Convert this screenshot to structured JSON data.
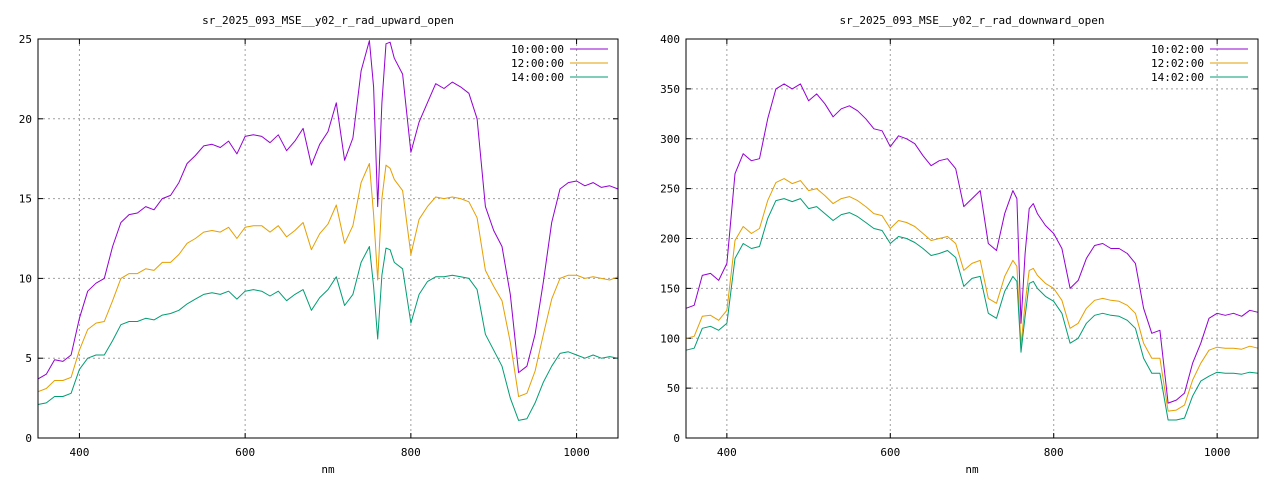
{
  "chart_data": [
    {
      "type": "line",
      "title": "sr_2025_093_MSE__y02_r_rad_upward_open",
      "xlabel": "nm",
      "ylabel": "",
      "xlim": [
        350,
        1050
      ],
      "ylim": [
        0,
        25
      ],
      "xticks": [
        400,
        600,
        800,
        1000
      ],
      "yticks": [
        0,
        5,
        10,
        15,
        20,
        25
      ],
      "grid": true,
      "legend": "top-right",
      "series": [
        {
          "name": "10:00:00",
          "color": "#9400d3",
          "x": [
            350,
            360,
            370,
            380,
            390,
            400,
            410,
            420,
            430,
            440,
            450,
            460,
            470,
            480,
            490,
            500,
            510,
            520,
            530,
            540,
            550,
            560,
            570,
            580,
            590,
            600,
            610,
            620,
            630,
            640,
            650,
            660,
            670,
            680,
            690,
            700,
            710,
            720,
            730,
            740,
            750,
            755,
            760,
            765,
            770,
            775,
            780,
            790,
            800,
            810,
            820,
            830,
            840,
            850,
            860,
            870,
            880,
            890,
            900,
            910,
            920,
            930,
            940,
            950,
            960,
            970,
            980,
            990,
            1000,
            1010,
            1020,
            1030,
            1040,
            1050
          ],
          "y": [
            3.7,
            4.0,
            4.9,
            4.8,
            5.2,
            7.5,
            9.2,
            9.7,
            10.0,
            12.0,
            13.5,
            14.0,
            14.1,
            14.5,
            14.3,
            15.0,
            15.2,
            16.0,
            17.2,
            17.7,
            18.3,
            18.4,
            18.2,
            18.6,
            17.8,
            18.9,
            19.0,
            18.9,
            18.5,
            19.0,
            18.0,
            18.6,
            19.4,
            17.1,
            18.4,
            19.2,
            21.0,
            17.4,
            18.8,
            23.0,
            24.9,
            22.0,
            14.5,
            21.0,
            24.7,
            24.8,
            23.8,
            22.8,
            17.9,
            19.8,
            21.0,
            22.2,
            21.9,
            22.3,
            22.0,
            21.6,
            20.0,
            14.5,
            13.0,
            12.0,
            9.0,
            4.1,
            4.5,
            6.5,
            9.8,
            13.5,
            15.6,
            16.0,
            16.1,
            15.8,
            16.0,
            15.7,
            15.8,
            15.6
          ]
        },
        {
          "name": "12:00:00",
          "color": "#e69f00",
          "x": [
            350,
            360,
            370,
            380,
            390,
            400,
            410,
            420,
            430,
            440,
            450,
            460,
            470,
            480,
            490,
            500,
            510,
            520,
            530,
            540,
            550,
            560,
            570,
            580,
            590,
            600,
            610,
            620,
            630,
            640,
            650,
            660,
            670,
            680,
            690,
            700,
            710,
            720,
            730,
            740,
            750,
            755,
            760,
            765,
            770,
            775,
            780,
            790,
            800,
            810,
            820,
            830,
            840,
            850,
            860,
            870,
            880,
            890,
            900,
            910,
            920,
            930,
            940,
            950,
            960,
            970,
            980,
            990,
            1000,
            1010,
            1020,
            1030,
            1040,
            1050
          ],
          "y": [
            2.9,
            3.1,
            3.6,
            3.6,
            3.8,
            5.5,
            6.8,
            7.2,
            7.3,
            8.6,
            10.0,
            10.3,
            10.3,
            10.6,
            10.5,
            11.0,
            11.0,
            11.5,
            12.2,
            12.5,
            12.9,
            13.0,
            12.9,
            13.2,
            12.5,
            13.2,
            13.3,
            13.3,
            12.9,
            13.3,
            12.6,
            13.0,
            13.5,
            11.8,
            12.8,
            13.4,
            14.6,
            12.2,
            13.3,
            16.0,
            17.2,
            14.0,
            9.9,
            15.0,
            17.1,
            16.9,
            16.2,
            15.5,
            11.5,
            13.7,
            14.5,
            15.1,
            15.0,
            15.1,
            15.0,
            14.8,
            13.8,
            10.5,
            9.5,
            8.6,
            6.0,
            2.6,
            2.8,
            4.2,
            6.5,
            8.7,
            10.0,
            10.2,
            10.2,
            10.0,
            10.1,
            10.0,
            9.9,
            10.1
          ]
        },
        {
          "name": "14:00:00",
          "color": "#009e73",
          "x": [
            350,
            360,
            370,
            380,
            390,
            400,
            410,
            420,
            430,
            440,
            450,
            460,
            470,
            480,
            490,
            500,
            510,
            520,
            530,
            540,
            550,
            560,
            570,
            580,
            590,
            600,
            610,
            620,
            630,
            640,
            650,
            660,
            670,
            680,
            690,
            700,
            710,
            720,
            730,
            740,
            750,
            755,
            760,
            765,
            770,
            775,
            780,
            790,
            800,
            810,
            820,
            830,
            840,
            850,
            860,
            870,
            880,
            890,
            900,
            910,
            920,
            930,
            940,
            950,
            960,
            970,
            980,
            990,
            1000,
            1010,
            1020,
            1030,
            1040,
            1050
          ],
          "y": [
            2.1,
            2.2,
            2.6,
            2.6,
            2.8,
            4.3,
            5.0,
            5.2,
            5.2,
            6.1,
            7.1,
            7.3,
            7.3,
            7.5,
            7.4,
            7.7,
            7.8,
            8.0,
            8.4,
            8.7,
            9.0,
            9.1,
            9.0,
            9.2,
            8.7,
            9.2,
            9.3,
            9.2,
            8.9,
            9.2,
            8.6,
            9.0,
            9.3,
            8.0,
            8.8,
            9.3,
            10.1,
            8.3,
            9.0,
            11.0,
            12.0,
            9.5,
            6.2,
            10.2,
            11.9,
            11.8,
            11.0,
            10.6,
            7.2,
            9.0,
            9.8,
            10.1,
            10.1,
            10.2,
            10.1,
            10.0,
            9.3,
            6.5,
            5.5,
            4.5,
            2.5,
            1.1,
            1.2,
            2.2,
            3.5,
            4.5,
            5.3,
            5.4,
            5.2,
            5.0,
            5.2,
            5.0,
            5.1,
            5.0
          ]
        }
      ]
    },
    {
      "type": "line",
      "title": "sr_2025_093_MSE__y02_r_rad_downward_open",
      "xlabel": "nm",
      "ylabel": "",
      "xlim": [
        350,
        1050
      ],
      "ylim": [
        0,
        400
      ],
      "xticks": [
        400,
        600,
        800,
        1000
      ],
      "yticks": [
        0,
        50,
        100,
        150,
        200,
        250,
        300,
        350,
        400
      ],
      "grid": true,
      "legend": "top-right",
      "series": [
        {
          "name": "10:02:00",
          "color": "#9400d3",
          "x": [
            350,
            360,
            370,
            380,
            390,
            400,
            410,
            420,
            430,
            440,
            450,
            460,
            470,
            480,
            490,
            500,
            510,
            520,
            530,
            540,
            550,
            560,
            570,
            580,
            590,
            600,
            610,
            620,
            630,
            640,
            650,
            660,
            670,
            680,
            690,
            700,
            710,
            720,
            730,
            740,
            750,
            755,
            760,
            765,
            770,
            775,
            780,
            790,
            800,
            810,
            820,
            830,
            840,
            850,
            860,
            870,
            880,
            890,
            900,
            910,
            920,
            930,
            940,
            950,
            960,
            970,
            980,
            990,
            1000,
            1010,
            1020,
            1030,
            1040,
            1050
          ],
          "y": [
            130,
            133,
            163,
            165,
            158,
            175,
            265,
            285,
            278,
            280,
            320,
            350,
            355,
            350,
            355,
            338,
            345,
            335,
            322,
            330,
            333,
            328,
            320,
            310,
            308,
            292,
            303,
            300,
            295,
            283,
            273,
            278,
            280,
            270,
            232,
            240,
            248,
            195,
            188,
            225,
            248,
            240,
            115,
            185,
            230,
            235,
            225,
            213,
            205,
            190,
            150,
            158,
            180,
            193,
            195,
            190,
            190,
            185,
            175,
            130,
            105,
            108,
            35,
            38,
            45,
            75,
            95,
            120,
            125,
            123,
            125,
            122,
            128,
            126
          ]
        },
        {
          "name": "12:02:00",
          "color": "#e69f00",
          "x": [
            350,
            360,
            370,
            380,
            390,
            400,
            410,
            420,
            430,
            440,
            450,
            460,
            470,
            480,
            490,
            500,
            510,
            520,
            530,
            540,
            550,
            560,
            570,
            580,
            590,
            600,
            610,
            620,
            630,
            640,
            650,
            660,
            670,
            680,
            690,
            700,
            710,
            720,
            730,
            740,
            750,
            755,
            760,
            765,
            770,
            775,
            780,
            790,
            800,
            810,
            820,
            830,
            840,
            850,
            860,
            870,
            880,
            890,
            900,
            910,
            920,
            930,
            940,
            950,
            960,
            970,
            980,
            990,
            1000,
            1010,
            1020,
            1030,
            1040,
            1050
          ],
          "y": [
            100,
            102,
            122,
            123,
            118,
            128,
            198,
            212,
            205,
            210,
            238,
            256,
            260,
            255,
            258,
            248,
            250,
            243,
            235,
            240,
            242,
            238,
            232,
            225,
            223,
            210,
            218,
            216,
            212,
            205,
            198,
            200,
            202,
            195,
            168,
            175,
            178,
            140,
            135,
            162,
            178,
            172,
            93,
            135,
            168,
            170,
            163,
            155,
            150,
            138,
            110,
            115,
            130,
            138,
            140,
            138,
            137,
            133,
            125,
            95,
            80,
            80,
            27,
            28,
            33,
            58,
            75,
            88,
            91,
            90,
            90,
            89,
            92,
            90
          ]
        },
        {
          "name": "14:02:00",
          "color": "#009e73",
          "x": [
            350,
            360,
            370,
            380,
            390,
            400,
            410,
            420,
            430,
            440,
            450,
            460,
            470,
            480,
            490,
            500,
            510,
            520,
            530,
            540,
            550,
            560,
            570,
            580,
            590,
            600,
            610,
            620,
            630,
            640,
            650,
            660,
            670,
            680,
            690,
            700,
            710,
            720,
            730,
            740,
            750,
            755,
            760,
            765,
            770,
            775,
            780,
            790,
            800,
            810,
            820,
            830,
            840,
            850,
            860,
            870,
            880,
            890,
            900,
            910,
            920,
            930,
            940,
            950,
            960,
            970,
            980,
            990,
            1000,
            1010,
            1020,
            1030,
            1040,
            1050
          ],
          "y": [
            88,
            90,
            110,
            112,
            108,
            115,
            180,
            195,
            190,
            192,
            220,
            238,
            240,
            237,
            240,
            230,
            232,
            225,
            218,
            224,
            226,
            222,
            216,
            210,
            208,
            195,
            202,
            200,
            196,
            190,
            183,
            185,
            188,
            181,
            152,
            160,
            162,
            125,
            120,
            147,
            162,
            157,
            86,
            122,
            155,
            157,
            150,
            142,
            137,
            125,
            95,
            100,
            115,
            123,
            125,
            123,
            122,
            118,
            110,
            80,
            65,
            65,
            18,
            18,
            20,
            42,
            57,
            62,
            66,
            65,
            65,
            64,
            66,
            65
          ]
        }
      ]
    }
  ]
}
